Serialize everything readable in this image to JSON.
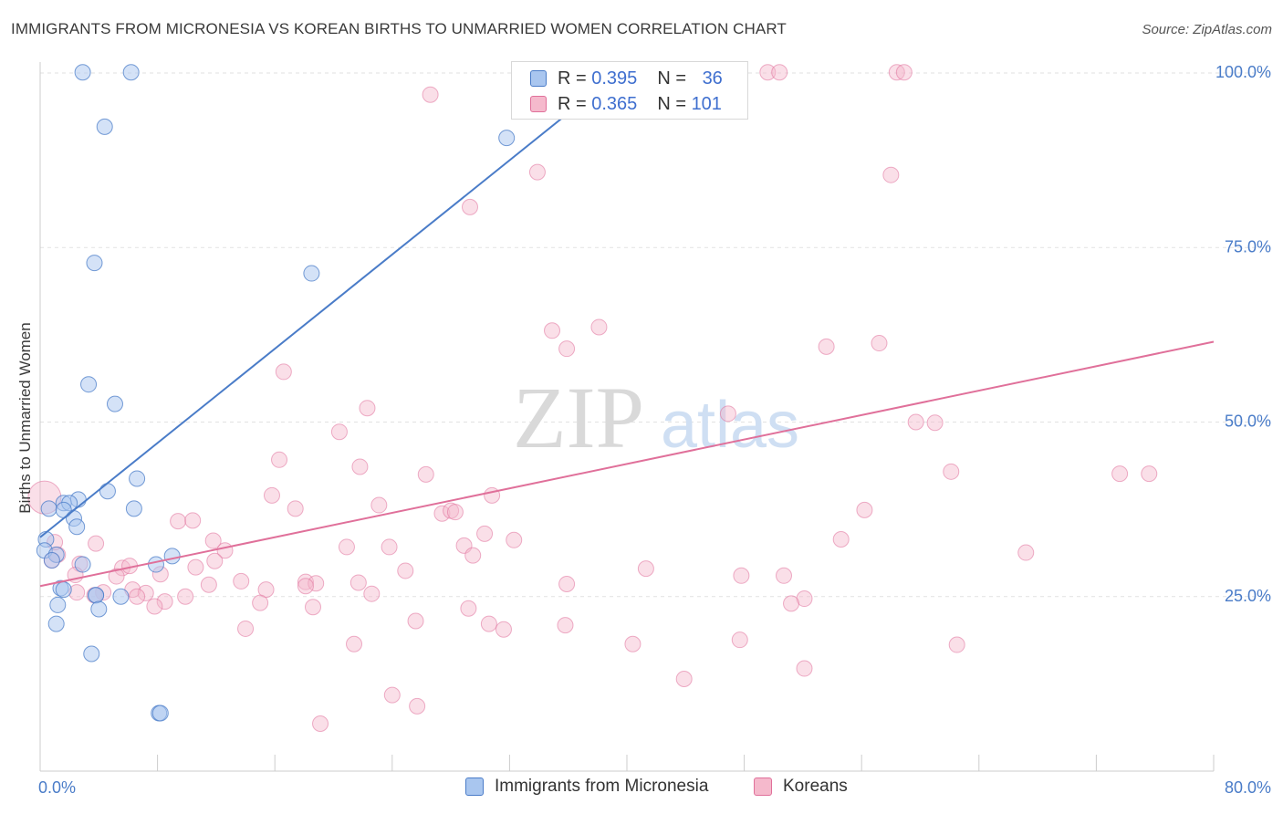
{
  "header": {
    "title": "IMMIGRANTS FROM MICRONESIA VS KOREAN BIRTHS TO UNMARRIED WOMEN CORRELATION CHART",
    "source": "Source: ZipAtlas.com"
  },
  "watermark": {
    "zip": "ZIP",
    "atlas": "atlas"
  },
  "legend": {
    "rows": [
      {
        "r_label": "R = ",
        "r_value": "0.395",
        "n_label": "N = ",
        "n_value": "36"
      },
      {
        "r_label": "R = ",
        "r_value": "0.365",
        "n_label": "N = ",
        "n_value": "101"
      }
    ]
  },
  "bottom_legend": {
    "series1": "Immigrants from Micronesia",
    "series2": "Koreans"
  },
  "chart_data": {
    "type": "scatter",
    "title": "IMMIGRANTS FROM MICRONESIA VS KOREAN BIRTHS TO UNMARRIED WOMEN CORRELATION CHART",
    "ylabel": "Births to Unmarried Women",
    "xlabel": "",
    "xlim": [
      0,
      80
    ],
    "ylim": [
      0,
      102
    ],
    "x_tick_labels": [
      "0.0%",
      "80.0%"
    ],
    "y_tick_labels": [
      "25.0%",
      "50.0%",
      "75.0%",
      "100.0%"
    ],
    "y_ticks": [
      25,
      50,
      75,
      100
    ],
    "grid": true,
    "legend_placement": "top-center",
    "colors": {
      "micronesia": "#4a7cc8",
      "micronesia_fill": "#a9c6ef",
      "koreans": "#e0709a",
      "koreans_fill": "#f5b9cc"
    },
    "series": [
      {
        "name": "Immigrants from Micronesia",
        "r": 0.395,
        "n": 36,
        "trend": {
          "x0": 0,
          "y0": 33.5,
          "x1": 40,
          "y1": 101
        },
        "points": [
          [
            2.9,
            100.1
          ],
          [
            6.2,
            100.1
          ],
          [
            4.4,
            92.3
          ],
          [
            31.8,
            90.7
          ],
          [
            3.7,
            72.8
          ],
          [
            18.5,
            71.3
          ],
          [
            3.3,
            55.4
          ],
          [
            5.1,
            52.6
          ],
          [
            6.6,
            41.9
          ],
          [
            4.6,
            40.1
          ],
          [
            2.6,
            38.9
          ],
          [
            1.6,
            38.4
          ],
          [
            2.0,
            38.4
          ],
          [
            6.4,
            37.6
          ],
          [
            0.6,
            37.6
          ],
          [
            1.6,
            37.4
          ],
          [
            2.3,
            36.2
          ],
          [
            2.5,
            35.0
          ],
          [
            0.4,
            33.2
          ],
          [
            0.3,
            31.6
          ],
          [
            1.1,
            31.0
          ],
          [
            0.8,
            30.2
          ],
          [
            2.9,
            29.6
          ],
          [
            9.0,
            30.8
          ],
          [
            7.9,
            29.6
          ],
          [
            1.4,
            26.2
          ],
          [
            1.6,
            26.0
          ],
          [
            3.8,
            25.2
          ],
          [
            3.8,
            25.2
          ],
          [
            5.5,
            25.0
          ],
          [
            1.2,
            23.8
          ],
          [
            4.0,
            23.2
          ],
          [
            1.1,
            21.1
          ],
          [
            3.5,
            16.8
          ],
          [
            8.1,
            8.3
          ],
          [
            8.2,
            8.3
          ]
        ]
      },
      {
        "name": "Koreans",
        "r": 0.365,
        "n": 101,
        "trend": {
          "x0": 0,
          "y0": 26.5,
          "x1": 80,
          "y1": 61.5
        },
        "points": [
          [
            33.8,
            100.1
          ],
          [
            40.2,
            100.1
          ],
          [
            49.6,
            100.1
          ],
          [
            50.4,
            100.1
          ],
          [
            58.4,
            100.1
          ],
          [
            58.9,
            100.1
          ],
          [
            26.6,
            96.9
          ],
          [
            33.9,
            85.8
          ],
          [
            58.0,
            85.4
          ],
          [
            29.3,
            80.8
          ],
          [
            34.9,
            63.1
          ],
          [
            38.1,
            63.6
          ],
          [
            35.9,
            60.5
          ],
          [
            53.6,
            60.8
          ],
          [
            57.2,
            61.3
          ],
          [
            16.6,
            57.2
          ],
          [
            22.3,
            52.0
          ],
          [
            46.9,
            51.2
          ],
          [
            59.7,
            50.0
          ],
          [
            61.0,
            49.9
          ],
          [
            20.4,
            48.6
          ],
          [
            16.3,
            44.6
          ],
          [
            21.8,
            43.6
          ],
          [
            26.3,
            42.5
          ],
          [
            62.1,
            42.9
          ],
          [
            73.6,
            42.6
          ],
          [
            75.6,
            42.6
          ],
          [
            15.8,
            39.5
          ],
          [
            30.8,
            39.5
          ],
          [
            17.4,
            37.6
          ],
          [
            23.1,
            38.1
          ],
          [
            27.4,
            36.9
          ],
          [
            28.0,
            37.3
          ],
          [
            28.3,
            37.1
          ],
          [
            56.2,
            37.4
          ],
          [
            9.4,
            35.8
          ],
          [
            10.4,
            35.9
          ],
          [
            30.3,
            34.0
          ],
          [
            11.8,
            33.0
          ],
          [
            32.3,
            33.1
          ],
          [
            3.8,
            32.6
          ],
          [
            20.9,
            32.1
          ],
          [
            23.8,
            32.1
          ],
          [
            28.9,
            32.3
          ],
          [
            54.6,
            33.2
          ],
          [
            12.6,
            31.6
          ],
          [
            67.2,
            31.3
          ],
          [
            1.2,
            31.0
          ],
          [
            11.9,
            30.1
          ],
          [
            0.8,
            30.2
          ],
          [
            2.7,
            29.7
          ],
          [
            5.6,
            29.1
          ],
          [
            24.9,
            28.7
          ],
          [
            41.3,
            29.0
          ],
          [
            2.4,
            28.1
          ],
          [
            8.2,
            28.2
          ],
          [
            47.8,
            28.0
          ],
          [
            50.7,
            28.0
          ],
          [
            5.2,
            27.9
          ],
          [
            13.7,
            27.2
          ],
          [
            18.1,
            27.1
          ],
          [
            18.8,
            26.9
          ],
          [
            11.5,
            26.7
          ],
          [
            18.1,
            26.5
          ],
          [
            35.9,
            26.8
          ],
          [
            6.3,
            26.0
          ],
          [
            15.4,
            26.0
          ],
          [
            2.5,
            25.6
          ],
          [
            4.3,
            25.6
          ],
          [
            7.2,
            25.5
          ],
          [
            22.6,
            25.4
          ],
          [
            3.7,
            25.2
          ],
          [
            6.6,
            25.0
          ],
          [
            9.9,
            25.0
          ],
          [
            52.1,
            24.7
          ],
          [
            8.5,
            24.3
          ],
          [
            15.0,
            24.1
          ],
          [
            51.2,
            24.0
          ],
          [
            7.8,
            23.6
          ],
          [
            18.6,
            23.5
          ],
          [
            29.2,
            23.3
          ],
          [
            25.6,
            21.5
          ],
          [
            30.6,
            21.1
          ],
          [
            35.8,
            20.9
          ],
          [
            31.6,
            20.3
          ],
          [
            14.0,
            20.4
          ],
          [
            21.4,
            18.2
          ],
          [
            40.4,
            18.2
          ],
          [
            47.7,
            18.8
          ],
          [
            62.5,
            18.1
          ],
          [
            52.1,
            14.7
          ],
          [
            43.9,
            13.2
          ],
          [
            24.0,
            10.9
          ],
          [
            25.7,
            9.3
          ],
          [
            19.1,
            6.8
          ],
          [
            0.3,
            39.2
          ],
          [
            1.0,
            32.8
          ],
          [
            6.1,
            29.4
          ],
          [
            10.6,
            29.2
          ],
          [
            21.7,
            27.0
          ],
          [
            29.5,
            30.9
          ]
        ]
      }
    ]
  }
}
